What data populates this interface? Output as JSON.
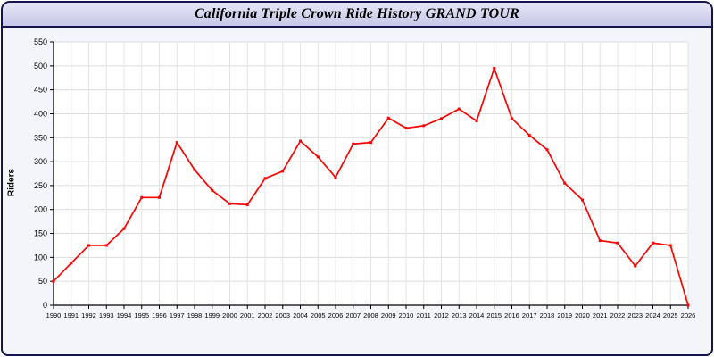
{
  "window": {
    "title": "California Triple Crown Ride History GRAND TOUR"
  },
  "chart_data": {
    "type": "line",
    "title": "California Triple Crown Ride History GRAND TOUR",
    "xlabel": "",
    "ylabel": "Riders",
    "ylim": [
      0,
      550
    ],
    "y_ticks": [
      0,
      50,
      100,
      150,
      200,
      250,
      300,
      350,
      400,
      450,
      500,
      550
    ],
    "grid": true,
    "legend": "none",
    "line_color": "#ff0000",
    "x": [
      1990,
      1991,
      1992,
      1993,
      1994,
      1995,
      1996,
      1997,
      1998,
      1999,
      2000,
      2001,
      2002,
      2003,
      2004,
      2005,
      2006,
      2007,
      2008,
      2009,
      2010,
      2011,
      2012,
      2013,
      2014,
      2015,
      2016,
      2017,
      2018,
      2019,
      2020,
      2021,
      2022,
      2023,
      2024,
      2025,
      2026
    ],
    "series": [
      {
        "name": "Riders",
        "color": "#ff0000",
        "values": [
          50,
          88,
          125,
          125,
          160,
          225,
          225,
          340,
          283,
          240,
          212,
          210,
          265,
          280,
          343,
          310,
          267,
          337,
          340,
          391,
          370,
          375,
          390,
          410,
          385,
          495,
          390,
          355,
          325,
          255,
          220,
          135,
          130,
          82,
          130,
          125,
          0
        ]
      }
    ]
  }
}
